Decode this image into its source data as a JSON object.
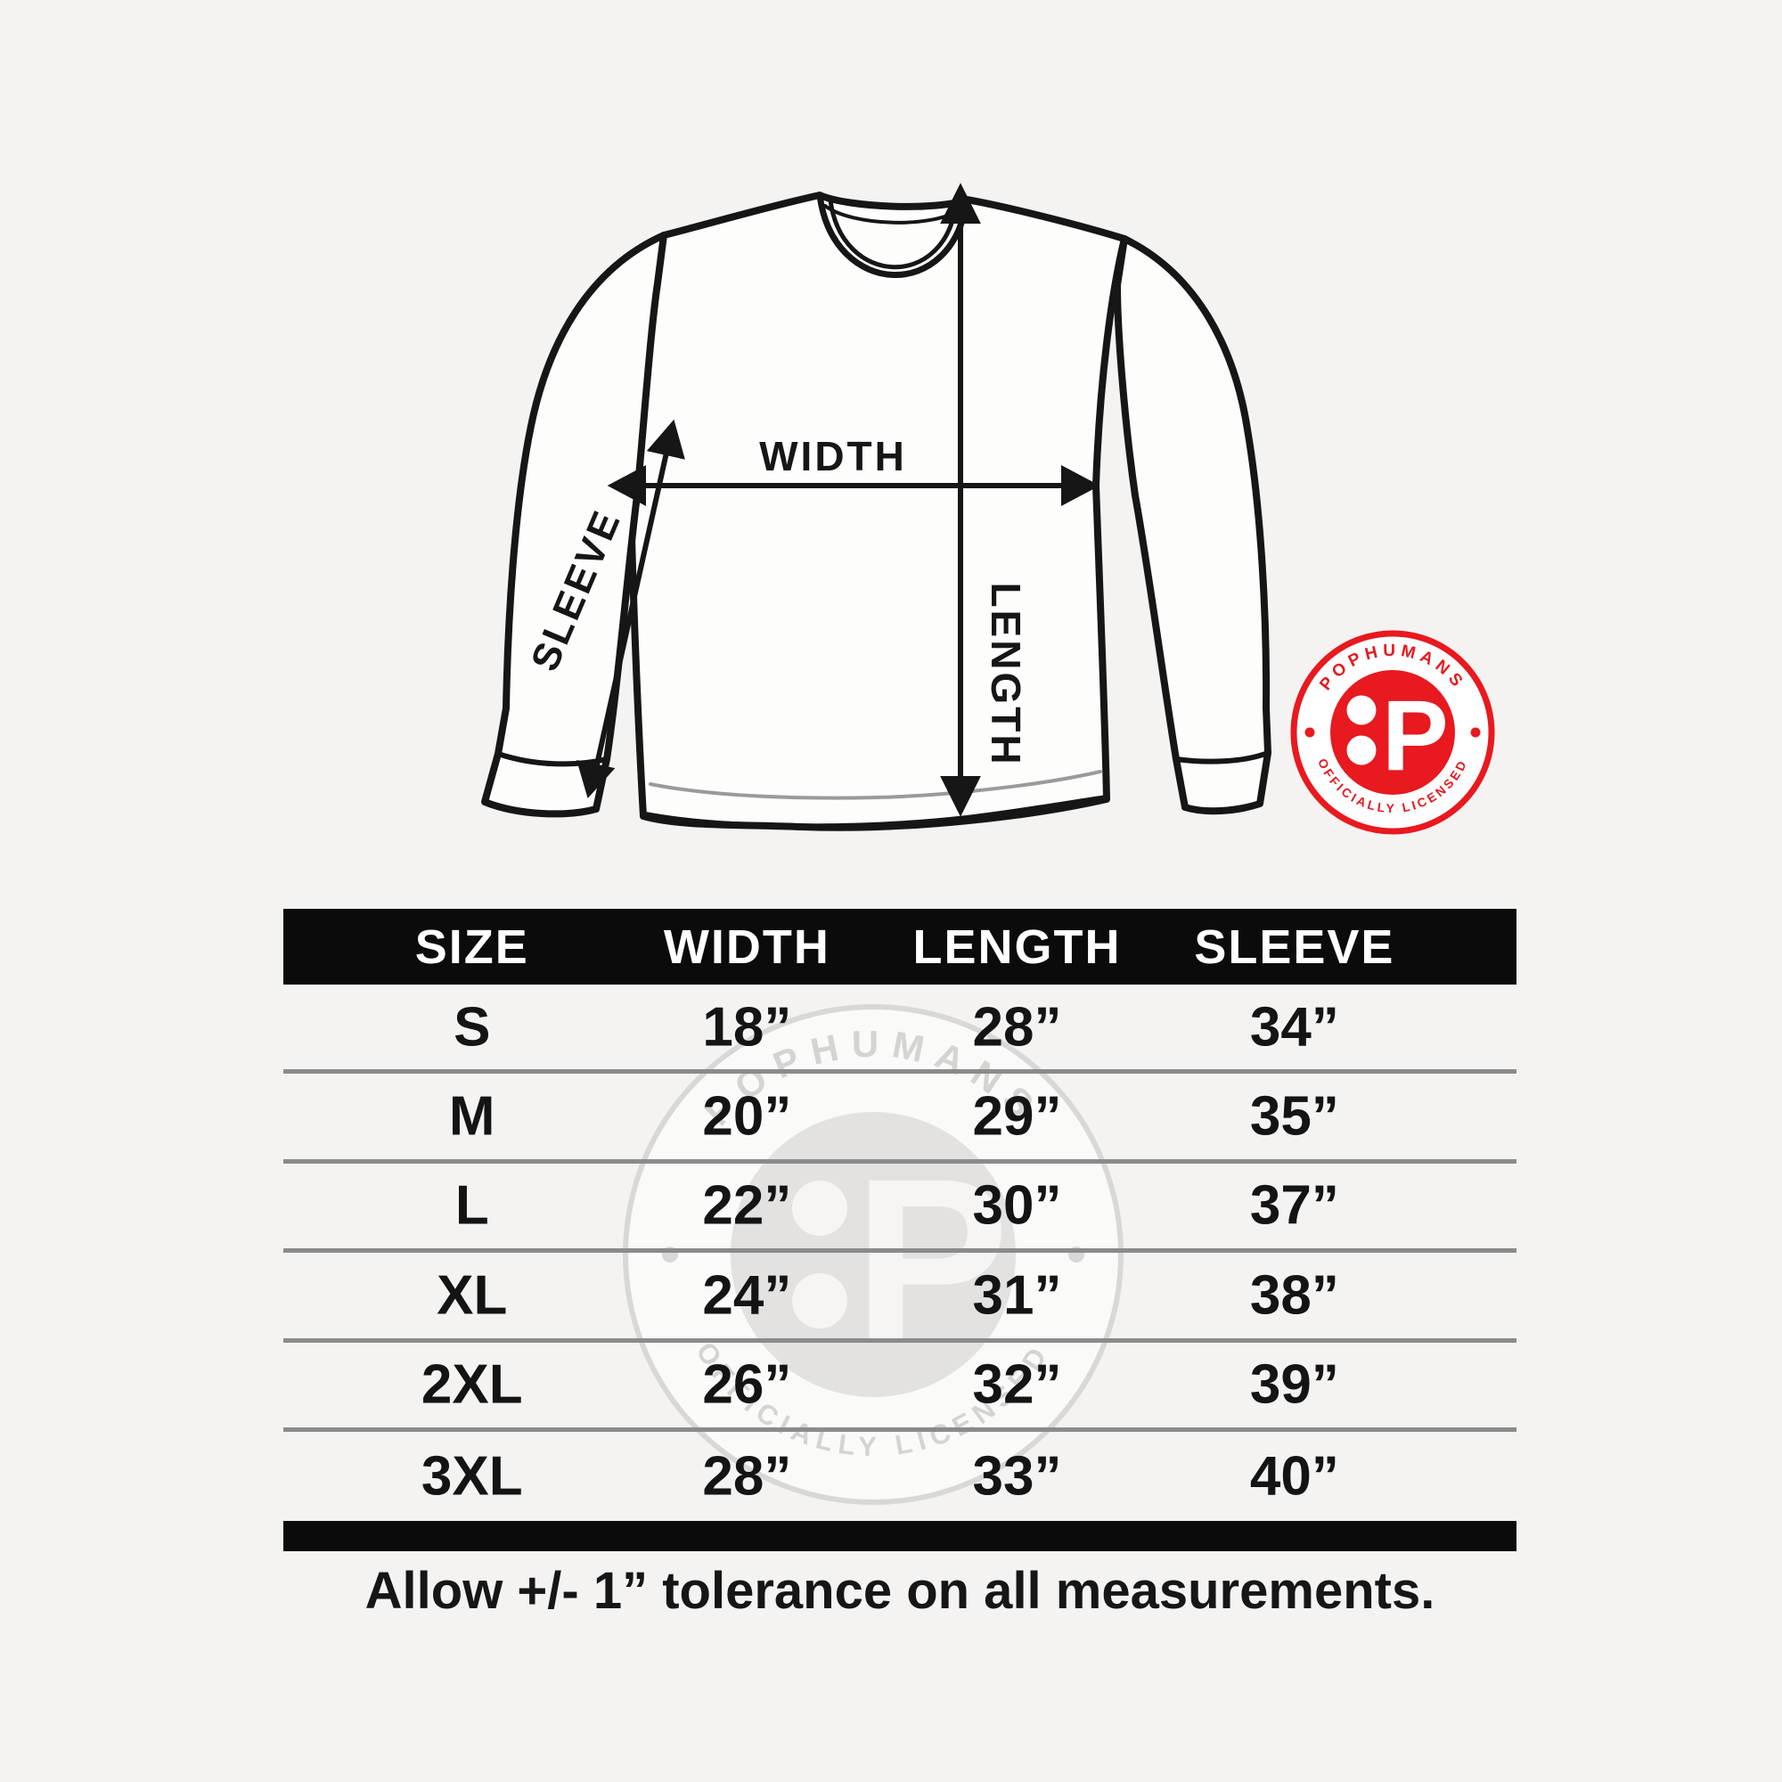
{
  "page": {
    "background": "#f4f3f1",
    "bar_color": "#0b0b0b",
    "separator_color": "#8b8b8b",
    "ink_color": "#161616"
  },
  "shirt_diagram": {
    "width_label": "WIDTH",
    "length_label": "LENGTH",
    "sleeve_label": "SLEEVE"
  },
  "badge": {
    "arc_top_text": "POPHUMANS",
    "arc_bottom_text": "OFFICIALLY LICENSED",
    "monogram_letter": "P",
    "color": "#e8191f"
  },
  "watermark": {
    "arc_top_text": "POPHUMANS",
    "arc_bottom_text": "OFFICIALLY LICENSED",
    "monogram_letter": "P"
  },
  "table": {
    "headers": [
      "SIZE",
      "WIDTH",
      "LENGTH",
      "SLEEVE"
    ],
    "rows": [
      [
        "S",
        "18”",
        "28”",
        "34”"
      ],
      [
        "M",
        "20”",
        "29”",
        "35”"
      ],
      [
        "L",
        "22”",
        "30”",
        "37”"
      ],
      [
        "XL",
        "24”",
        "31”",
        "38”"
      ],
      [
        "2XL",
        "26”",
        "32”",
        "39”"
      ],
      [
        "3XL",
        "28”",
        "33”",
        "40”"
      ]
    ]
  },
  "footer": {
    "note": "Allow +/- 1” tolerance on all measurements."
  }
}
